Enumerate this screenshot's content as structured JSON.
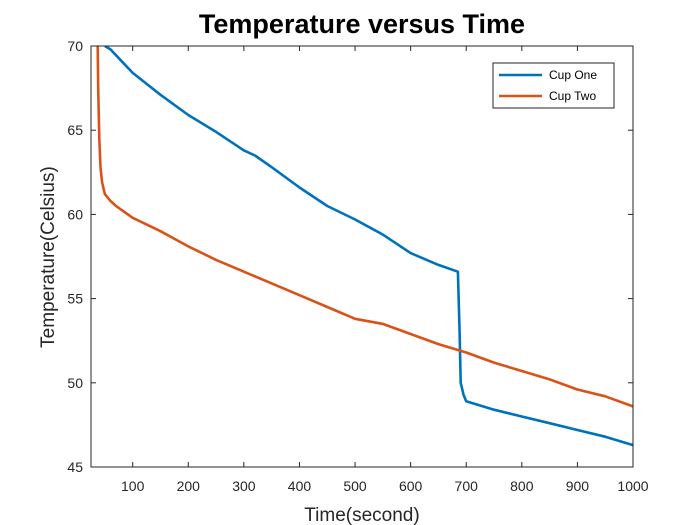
{
  "chart_data": {
    "type": "line",
    "title": "Temperature versus Time",
    "xlabel": "Time(second)",
    "ylabel": "Temperature(Celsius)",
    "xlim": [
      25,
      1000
    ],
    "ylim": [
      45,
      70
    ],
    "xticks": [
      100,
      200,
      300,
      400,
      500,
      600,
      700,
      800,
      900,
      1000
    ],
    "yticks": [
      45,
      50,
      55,
      60,
      65,
      70
    ],
    "grid": false,
    "legend_position": "top-right",
    "series": [
      {
        "name": "Cup One",
        "color": "#0072BD",
        "x": [
          50,
          60,
          80,
          100,
          150,
          200,
          250,
          300,
          320,
          350,
          400,
          450,
          500,
          550,
          600,
          650,
          685,
          688,
          690,
          695,
          700,
          750,
          800,
          850,
          900,
          950,
          1000
        ],
        "y": [
          70,
          69.8,
          69.1,
          68.4,
          67.1,
          65.9,
          64.9,
          63.8,
          63.5,
          62.8,
          61.6,
          60.5,
          59.7,
          58.8,
          57.7,
          57.0,
          56.6,
          53.0,
          50.0,
          49.3,
          48.9,
          48.4,
          48.0,
          47.6,
          47.2,
          46.8,
          46.3
        ]
      },
      {
        "name": "Cup Two",
        "color": "#D95319",
        "x": [
          37,
          38,
          40,
          42,
          45,
          50,
          60,
          70,
          100,
          150,
          200,
          250,
          300,
          350,
          400,
          450,
          500,
          550,
          600,
          650,
          700,
          750,
          800,
          850,
          900,
          950,
          1000
        ],
        "y": [
          70,
          67.5,
          64.5,
          62.8,
          61.9,
          61.2,
          60.8,
          60.5,
          59.8,
          59.0,
          58.1,
          57.3,
          56.6,
          55.9,
          55.2,
          54.5,
          53.8,
          53.5,
          52.9,
          52.3,
          51.8,
          51.2,
          50.7,
          50.2,
          49.6,
          49.2,
          48.6
        ]
      }
    ]
  }
}
